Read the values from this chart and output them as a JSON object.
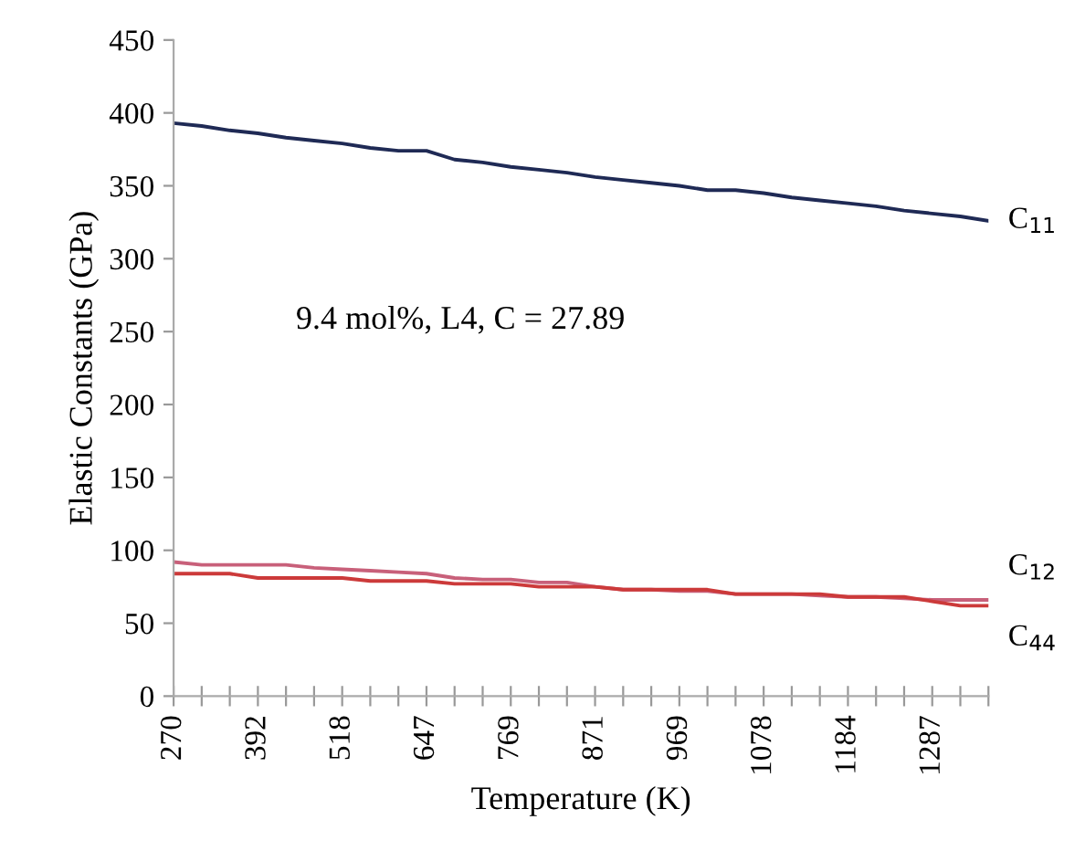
{
  "chart_data": {
    "type": "line",
    "xlabel": "Temperature (K)",
    "ylabel": "Elastic Constants (GPa)",
    "categories": [
      "270",
      null,
      null,
      "392",
      null,
      null,
      "518",
      null,
      null,
      "647",
      null,
      null,
      "769",
      null,
      null,
      "871",
      null,
      null,
      "969",
      null,
      null,
      "1078",
      null,
      null,
      "1184",
      null,
      null,
      "1287",
      null,
      null
    ],
    "series": [
      {
        "name": "C$_{11}$",
        "color": "#1f2a55",
        "values": [
          393,
          391,
          388,
          386,
          383,
          381,
          379,
          376,
          374,
          374,
          368,
          366,
          363,
          361,
          359,
          356,
          354,
          352,
          350,
          347,
          347,
          345,
          342,
          340,
          338,
          336,
          333,
          331,
          329,
          326
        ]
      },
      {
        "name": "C$_{12}$",
        "color": "#c8607a",
        "values": [
          92,
          90,
          90,
          90,
          90,
          88,
          87,
          86,
          85,
          84,
          81,
          80,
          80,
          78,
          78,
          75,
          73,
          73,
          72,
          72,
          70,
          70,
          70,
          69,
          68,
          68,
          67,
          66,
          66,
          66
        ]
      },
      {
        "name": "C$_{44}$",
        "color": "#cc3a3a",
        "values": [
          84,
          84,
          84,
          81,
          81,
          81,
          81,
          79,
          79,
          79,
          77,
          77,
          77,
          75,
          75,
          75,
          73,
          73,
          73,
          73,
          70,
          70,
          70,
          70,
          68,
          68,
          68,
          65,
          62,
          62
        ]
      }
    ],
    "ylim": [
      0,
      450
    ],
    "yticks": [
      0,
      50,
      100,
      150,
      200,
      250,
      300,
      350,
      400,
      450
    ],
    "annotations": [
      "9.4 mol%, L4, C = 27.89"
    ],
    "grid": false,
    "legend": false,
    "marker": "none",
    "line_style": "solid"
  }
}
